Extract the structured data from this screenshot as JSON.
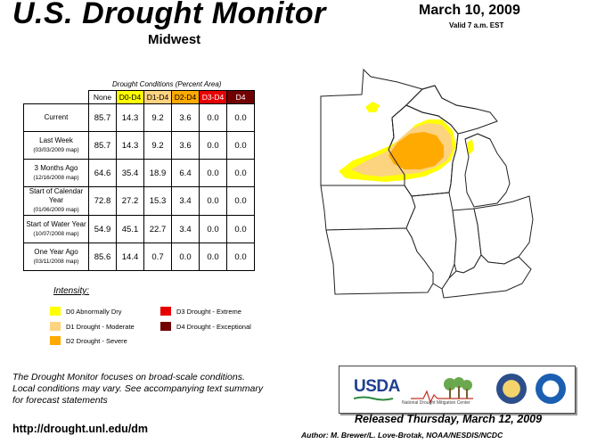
{
  "header": {
    "title": "U.S. Drought Monitor",
    "region": "Midwest",
    "date": "March 10, 2009",
    "valid": "Valid 7 a.m. EST"
  },
  "table": {
    "caption": "Drought Conditions (Percent Area)",
    "columns": [
      "None",
      "D0-D4",
      "D1-D4",
      "D2-D4",
      "D3-D4",
      "D4"
    ],
    "rows": [
      {
        "label": "Current",
        "sublabel": "",
        "values": [
          "85.7",
          "14.3",
          "9.2",
          "3.6",
          "0.0",
          "0.0"
        ]
      },
      {
        "label": "Last Week",
        "sublabel": "(03/03/2009 map)",
        "values": [
          "85.7",
          "14.3",
          "9.2",
          "3.6",
          "0.0",
          "0.0"
        ]
      },
      {
        "label": "3 Months Ago",
        "sublabel": "(12/16/2008 map)",
        "values": [
          "64.6",
          "35.4",
          "18.9",
          "6.4",
          "0.0",
          "0.0"
        ]
      },
      {
        "label": "Start of Calendar Year",
        "sublabel": "(01/06/2009 map)",
        "values": [
          "72.8",
          "27.2",
          "15.3",
          "3.4",
          "0.0",
          "0.0"
        ]
      },
      {
        "label": "Start of Water Year",
        "sublabel": "(10/07/2008 map)",
        "values": [
          "54.9",
          "45.1",
          "22.7",
          "3.4",
          "0.0",
          "0.0"
        ]
      },
      {
        "label": "One Year Ago",
        "sublabel": "(03/11/2008 map)",
        "values": [
          "85.6",
          "14.4",
          "0.7",
          "0.0",
          "0.0",
          "0.0"
        ]
      }
    ]
  },
  "legend": {
    "title": "Intensity:",
    "items": [
      {
        "label": "D0 Abnormally Dry",
        "color": "#ffff00"
      },
      {
        "label": "D1 Drought - Moderate",
        "color": "#fcd37f"
      },
      {
        "label": "D2 Drought - Severe",
        "color": "#ffaa00"
      },
      {
        "label": "D3 Drought - Extreme",
        "color": "#e60000"
      },
      {
        "label": "D4 Drought - Exceptional",
        "color": "#730000"
      }
    ]
  },
  "footer": {
    "note_line1": "The Drought Monitor focuses on broad-scale conditions.",
    "note_line2": "Local conditions may vary. See accompanying text summary",
    "note_line3": "for forecast statements",
    "url": "http://drought.unl.edu/dm",
    "released": "Released Thursday, March 12, 2009",
    "author": "Author: M. Brewer/L. Love-Brotak, NOAA/NESDIS/NCDC"
  },
  "logos": {
    "usda": "USDA",
    "ndmc": "National Drought Mitigation Center"
  }
}
